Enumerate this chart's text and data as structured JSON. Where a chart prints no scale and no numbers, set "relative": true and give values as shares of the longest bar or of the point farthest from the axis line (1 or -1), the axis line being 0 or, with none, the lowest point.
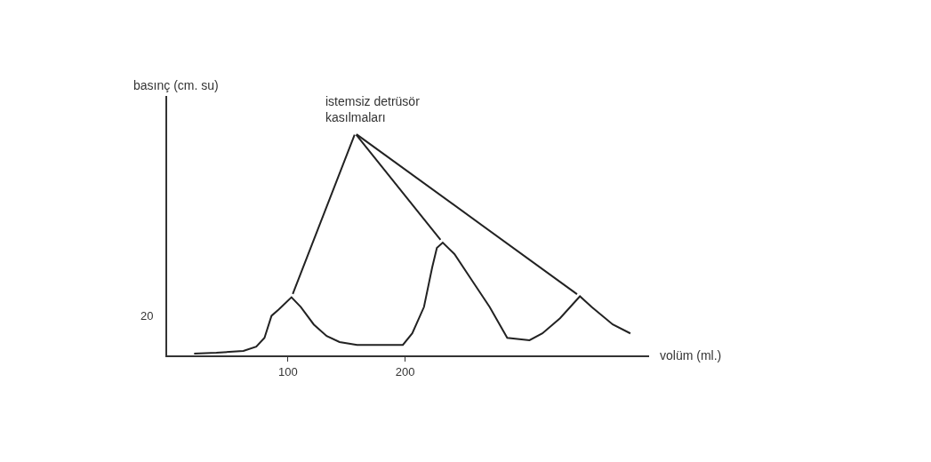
{
  "chart_data": {
    "type": "line",
    "relative": true,
    "xlabel": "volüm (ml.)",
    "x": [
      20,
      39,
      62,
      73,
      80,
      86,
      92,
      103,
      111,
      122,
      133,
      144,
      159,
      182,
      198,
      206,
      216,
      223,
      227,
      232,
      242,
      257,
      272,
      287,
      306,
      317,
      332,
      349,
      359,
      377,
      392
    ],
    "series": [
      {
        "color": "#222222",
        "values": [
          0.016,
          0.023,
          0.039,
          0.077,
          0.156,
          0.351,
          0.406,
          0.515,
          0.429,
          0.274,
          0.172,
          0.118,
          0.093,
          0.093,
          0.093,
          0.195,
          0.429,
          0.78,
          0.953,
          1,
          0.898,
          0.664,
          0.429,
          0.156,
          0.134,
          0.195,
          0.329,
          0.524,
          0.429,
          0.274,
          0.195
        ]
      }
    ],
    "xlim": [
      -3,
      408
    ],
    "xticks": [
      100,
      200
    ],
    "annotations": [
      "istemsiz detrüsör kasılmaları",
      "20",
      "basınç (cm. su)"
    ],
    "marker": "none",
    "line_style": "solid"
  }
}
